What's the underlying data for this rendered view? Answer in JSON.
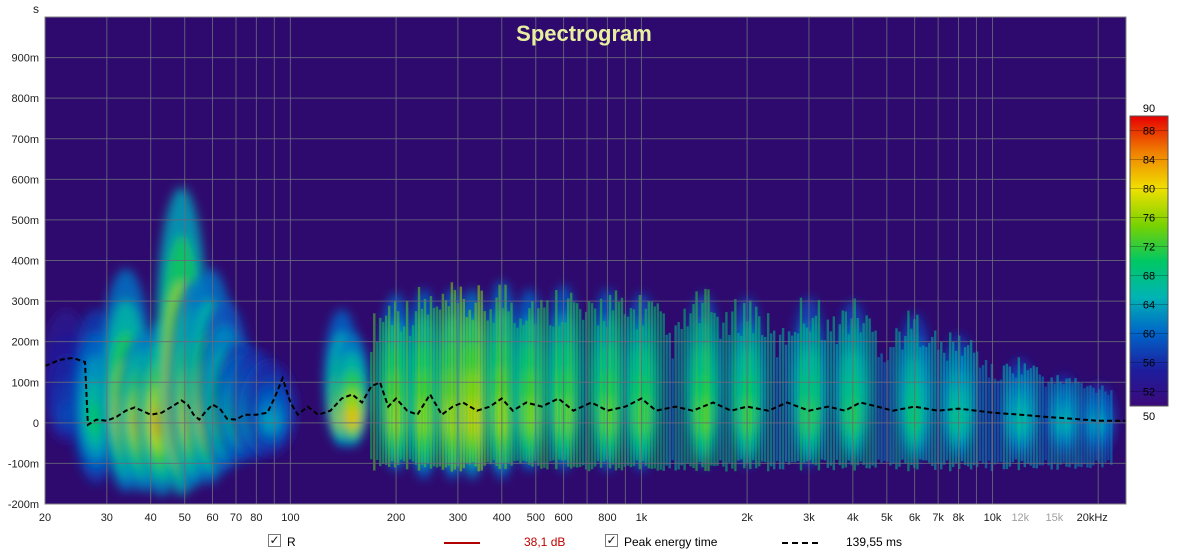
{
  "chart_data": {
    "type": "heatmap",
    "title": "Spectrogram",
    "ylabel": "s",
    "y_axis": {
      "range": [
        -0.2,
        1.0
      ],
      "ticks": [
        {
          "v": 0.9,
          "label": "900m"
        },
        {
          "v": 0.8,
          "label": "800m"
        },
        {
          "v": 0.7,
          "label": "700m"
        },
        {
          "v": 0.6,
          "label": "600m"
        },
        {
          "v": 0.5,
          "label": "500m"
        },
        {
          "v": 0.4,
          "label": "400m"
        },
        {
          "v": 0.3,
          "label": "300m"
        },
        {
          "v": 0.2,
          "label": "200m"
        },
        {
          "v": 0.1,
          "label": "100m"
        },
        {
          "v": 0.0,
          "label": "0"
        },
        {
          "v": -0.1,
          "label": "-100m"
        },
        {
          "v": -0.2,
          "label": "-200m"
        }
      ]
    },
    "x_axis": {
      "scale": "log",
      "range_hz": [
        20,
        24000
      ],
      "ticks": [
        {
          "v": 20,
          "label": "20"
        },
        {
          "v": 30,
          "label": "30"
        },
        {
          "v": 40,
          "label": "40"
        },
        {
          "v": 50,
          "label": "50"
        },
        {
          "v": 60,
          "label": "60"
        },
        {
          "v": 70,
          "label": "70"
        },
        {
          "v": 80,
          "label": "80"
        },
        {
          "v": 100,
          "label": "100"
        },
        {
          "v": 200,
          "label": "200"
        },
        {
          "v": 300,
          "label": "300"
        },
        {
          "v": 400,
          "label": "400"
        },
        {
          "v": 500,
          "label": "500"
        },
        {
          "v": 600,
          "label": "600"
        },
        {
          "v": 800,
          "label": "800"
        },
        {
          "v": 1000,
          "label": "1k"
        },
        {
          "v": 2000,
          "label": "2k"
        },
        {
          "v": 3000,
          "label": "3k"
        },
        {
          "v": 4000,
          "label": "4k"
        },
        {
          "v": 5000,
          "label": "5k"
        },
        {
          "v": 6000,
          "label": "6k"
        },
        {
          "v": 7000,
          "label": "7k"
        },
        {
          "v": 8000,
          "label": "8k"
        },
        {
          "v": 10000,
          "label": "10k"
        },
        {
          "v": 12000,
          "label": "12k",
          "faint": true
        },
        {
          "v": 15000,
          "label": "15k",
          "faint": true
        },
        {
          "v": 20000,
          "label": "20kHz"
        }
      ]
    },
    "grid": true,
    "background_color": "#2e0a6e",
    "colorbar": {
      "range": [
        50,
        90
      ],
      "ticks": [
        88,
        84,
        80,
        76,
        72,
        68,
        64,
        60,
        56,
        52
      ],
      "top_label": "90",
      "bottom_label": "50",
      "stops": [
        "#3c0a7a",
        "#1d1d9e",
        "#0064c8",
        "#00b4b4",
        "#00c864",
        "#7ad200",
        "#f0e000",
        "#f08000",
        "#e60000"
      ]
    },
    "energy_blobs": [
      {
        "f": 23,
        "t_top": 0.28,
        "t_bottom": -0.05,
        "level": 0.2
      },
      {
        "f": 28,
        "t_top": 0.28,
        "t_bottom": -0.15,
        "level": 0.5
      },
      {
        "f": 34,
        "t_top": 0.38,
        "t_bottom": -0.17,
        "level": 0.78
      },
      {
        "f": 38,
        "t_top": 0.22,
        "t_bottom": -0.17,
        "level": 0.82
      },
      {
        "f": 43,
        "t_top": 0.25,
        "t_bottom": -0.18,
        "level": 0.85
      },
      {
        "f": 49,
        "t_top": 0.58,
        "t_bottom": -0.18,
        "level": 1.0
      },
      {
        "f": 53,
        "t_top": 0.35,
        "t_bottom": -0.16,
        "level": 0.8
      },
      {
        "f": 59,
        "t_top": 0.38,
        "t_bottom": -0.15,
        "level": 0.78
      },
      {
        "f": 65,
        "t_top": 0.3,
        "t_bottom": -0.12,
        "level": 0.6
      },
      {
        "f": 72,
        "t_top": 0.2,
        "t_bottom": -0.1,
        "level": 0.5
      },
      {
        "f": 80,
        "t_top": 0.18,
        "t_bottom": -0.09,
        "level": 0.42
      },
      {
        "f": 88,
        "t_top": 0.15,
        "t_bottom": -0.08,
        "level": 0.35
      },
      {
        "f": 140,
        "t_top": 0.28,
        "t_bottom": -0.06,
        "level": 0.72
      },
      {
        "f": 150,
        "t_top": 0.22,
        "t_bottom": -0.06,
        "level": 0.8
      },
      {
        "f": 200,
        "t_top": 0.32,
        "t_bottom": -0.12,
        "level": 0.7
      },
      {
        "f": 240,
        "t_top": 0.33,
        "t_bottom": -0.14,
        "level": 0.68
      },
      {
        "f": 290,
        "t_top": 0.33,
        "t_bottom": -0.14,
        "level": 0.72
      },
      {
        "f": 330,
        "t_top": 0.33,
        "t_bottom": -0.14,
        "level": 0.78
      },
      {
        "f": 400,
        "t_top": 0.35,
        "t_bottom": -0.14,
        "level": 0.7
      },
      {
        "f": 480,
        "t_top": 0.33,
        "t_bottom": -0.12,
        "level": 0.68
      },
      {
        "f": 600,
        "t_top": 0.34,
        "t_bottom": -0.12,
        "level": 0.66
      },
      {
        "f": 800,
        "t_top": 0.33,
        "t_bottom": -0.12,
        "level": 0.64
      },
      {
        "f": 1000,
        "t_top": 0.32,
        "t_bottom": -0.12,
        "level": 0.62
      },
      {
        "f": 1500,
        "t_top": 0.32,
        "t_bottom": -0.11,
        "level": 0.62
      },
      {
        "f": 2000,
        "t_top": 0.31,
        "t_bottom": -0.11,
        "level": 0.6
      },
      {
        "f": 3000,
        "t_top": 0.31,
        "t_bottom": -0.11,
        "level": 0.58
      },
      {
        "f": 4000,
        "t_top": 0.3,
        "t_bottom": -0.1,
        "level": 0.56
      },
      {
        "f": 6000,
        "t_top": 0.27,
        "t_bottom": -0.1,
        "level": 0.52
      },
      {
        "f": 8000,
        "t_top": 0.22,
        "t_bottom": -0.09,
        "level": 0.48
      },
      {
        "f": 12000,
        "t_top": 0.16,
        "t_bottom": -0.09,
        "level": 0.44
      },
      {
        "f": 16000,
        "t_top": 0.12,
        "t_bottom": -0.08,
        "level": 0.4
      },
      {
        "f": 20000,
        "t_top": 0.1,
        "t_bottom": -0.08,
        "level": 0.36
      }
    ],
    "series": [
      {
        "name": "Peak energy time",
        "style": "dashed",
        "color": "#000000",
        "points": [
          [
            20,
            0.14
          ],
          [
            22,
            0.155
          ],
          [
            24,
            0.16
          ],
          [
            26,
            0.15
          ],
          [
            26.5,
            -0.005
          ],
          [
            28,
            0.008
          ],
          [
            30,
            0.005
          ],
          [
            32,
            0.015
          ],
          [
            34,
            0.03
          ],
          [
            36,
            0.038
          ],
          [
            40,
            0.02
          ],
          [
            43,
            0.025
          ],
          [
            46,
            0.04
          ],
          [
            49,
            0.055
          ],
          [
            51,
            0.045
          ],
          [
            53,
            0.02
          ],
          [
            55,
            0.008
          ],
          [
            57,
            0.025
          ],
          [
            60,
            0.045
          ],
          [
            63,
            0.035
          ],
          [
            66,
            0.01
          ],
          [
            70,
            0.008
          ],
          [
            74,
            0.02
          ],
          [
            80,
            0.02
          ],
          [
            86,
            0.025
          ],
          [
            90,
            0.06
          ],
          [
            95,
            0.11
          ],
          [
            100,
            0.05
          ],
          [
            105,
            0.02
          ],
          [
            112,
            0.04
          ],
          [
            120,
            0.02
          ],
          [
            130,
            0.03
          ],
          [
            140,
            0.06
          ],
          [
            150,
            0.07
          ],
          [
            160,
            0.05
          ],
          [
            170,
            0.09
          ],
          [
            180,
            0.1
          ],
          [
            190,
            0.04
          ],
          [
            200,
            0.06
          ],
          [
            215,
            0.03
          ],
          [
            230,
            0.02
          ],
          [
            250,
            0.07
          ],
          [
            270,
            0.02
          ],
          [
            290,
            0.04
          ],
          [
            310,
            0.05
          ],
          [
            340,
            0.03
          ],
          [
            370,
            0.04
          ],
          [
            400,
            0.06
          ],
          [
            430,
            0.03
          ],
          [
            470,
            0.05
          ],
          [
            520,
            0.04
          ],
          [
            580,
            0.06
          ],
          [
            640,
            0.03
          ],
          [
            720,
            0.05
          ],
          [
            800,
            0.03
          ],
          [
            900,
            0.04
          ],
          [
            1000,
            0.06
          ],
          [
            1100,
            0.03
          ],
          [
            1250,
            0.04
          ],
          [
            1400,
            0.03
          ],
          [
            1600,
            0.05
          ],
          [
            1800,
            0.03
          ],
          [
            2000,
            0.04
          ],
          [
            2300,
            0.03
          ],
          [
            2600,
            0.05
          ],
          [
            3000,
            0.03
          ],
          [
            3400,
            0.04
          ],
          [
            3800,
            0.03
          ],
          [
            4200,
            0.05
          ],
          [
            4700,
            0.04
          ],
          [
            5200,
            0.03
          ],
          [
            6000,
            0.04
          ],
          [
            7000,
            0.03
          ],
          [
            8000,
            0.035
          ],
          [
            9000,
            0.03
          ],
          [
            10000,
            0.025
          ],
          [
            12000,
            0.02
          ],
          [
            14000,
            0.015
          ],
          [
            17000,
            0.01
          ],
          [
            20000,
            0.005
          ],
          [
            24000,
            0.005
          ]
        ]
      }
    ]
  },
  "legend": {
    "r_label": "R",
    "r_value": "38,1 dB",
    "pet_label": "Peak energy time",
    "pet_value": "139,55 ms"
  }
}
